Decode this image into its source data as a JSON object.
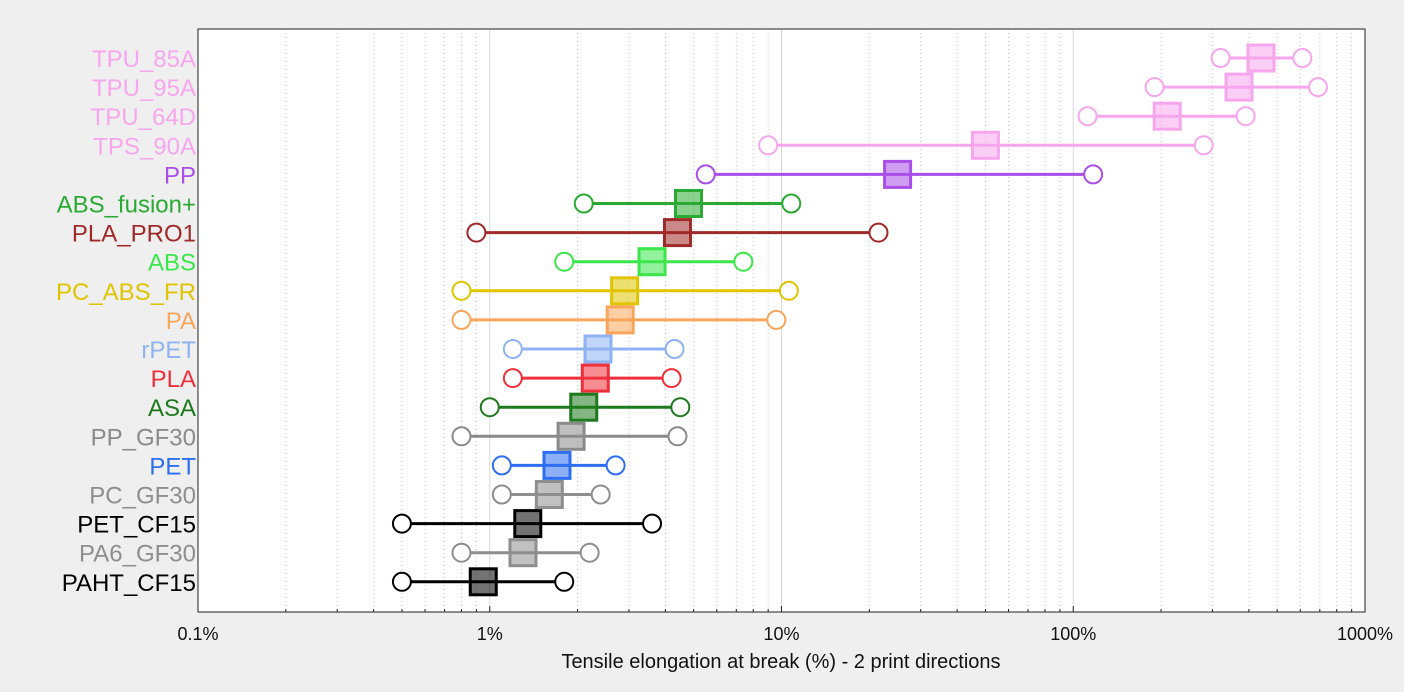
{
  "chart_data": {
    "type": "scatter",
    "xlabel": "Tensile elongation at break (%) - 2 print directions",
    "xscale": "log",
    "xlim": [
      0.1,
      1000
    ],
    "x_ticks": [
      {
        "value": 0.1,
        "label": "0.1%"
      },
      {
        "value": 1,
        "label": "1%"
      },
      {
        "value": 10,
        "label": "10%"
      },
      {
        "value": 100,
        "label": "100%"
      },
      {
        "value": 1000,
        "label": "1000%"
      }
    ],
    "grid": "vertical minor dotted, major solid",
    "markers": {
      "range_ends": "open circles",
      "mean": "filled square"
    },
    "items": [
      {
        "name": "TPU_85A",
        "color": "#f7a6ee",
        "min": 320,
        "mean": 440,
        "max": 610
      },
      {
        "name": "TPU_95A",
        "color": "#f7a6ee",
        "min": 190,
        "mean": 370,
        "max": 690
      },
      {
        "name": "TPU_64D",
        "color": "#f7a6ee",
        "min": 112,
        "mean": 210,
        "max": 390
      },
      {
        "name": "TPS_90A",
        "color": "#f7a6ee",
        "min": 9,
        "mean": 50,
        "max": 280
      },
      {
        "name": "PP",
        "color": "#a94ee6",
        "min": 5.5,
        "mean": 25,
        "max": 117
      },
      {
        "name": "ABS_fusion+",
        "color": "#2aaa33",
        "min": 2.1,
        "mean": 4.8,
        "max": 10.8
      },
      {
        "name": "PLA_PRO1",
        "color": "#a02a2a",
        "min": 0.9,
        "mean": 4.4,
        "max": 21.5
      },
      {
        "name": "ABS",
        "color": "#3ae64a",
        "min": 1.8,
        "mean": 3.6,
        "max": 7.4
      },
      {
        "name": "PC_ABS_FR",
        "color": "#e0c400",
        "min": 0.8,
        "mean": 2.9,
        "max": 10.6
      },
      {
        "name": "PA",
        "color": "#f9a55a",
        "min": 0.8,
        "mean": 2.8,
        "max": 9.6
      },
      {
        "name": "rPET",
        "color": "#8eb2f2",
        "min": 1.2,
        "mean": 2.35,
        "max": 4.3
      },
      {
        "name": "PLA",
        "color": "#ef2f3a",
        "min": 1.2,
        "mean": 2.3,
        "max": 4.2
      },
      {
        "name": "ASA",
        "color": "#1d7a1d",
        "min": 1.0,
        "mean": 2.1,
        "max": 4.5
      },
      {
        "name": "PP_GF30",
        "color": "#8a8a8a",
        "min": 0.8,
        "mean": 1.9,
        "max": 4.4
      },
      {
        "name": "PET",
        "color": "#2e6ef0",
        "min": 1.1,
        "mean": 1.7,
        "max": 2.7
      },
      {
        "name": "PC_GF30",
        "color": "#8e8e8e",
        "min": 1.1,
        "mean": 1.6,
        "max": 2.4
      },
      {
        "name": "PET_CF15",
        "color": "#000000",
        "min": 0.5,
        "mean": 1.35,
        "max": 3.6
      },
      {
        "name": "PA6_GF30",
        "color": "#8e8e8e",
        "min": 0.8,
        "mean": 1.3,
        "max": 2.2
      },
      {
        "name": "PAHT_CF15",
        "color": "#000000",
        "min": 0.5,
        "mean": 0.95,
        "max": 1.8
      }
    ]
  }
}
